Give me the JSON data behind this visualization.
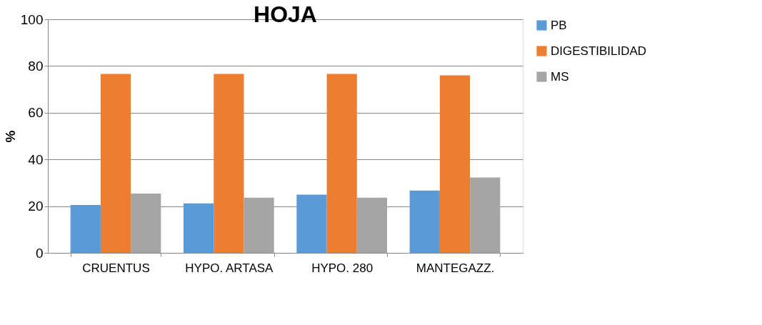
{
  "chart_data": {
    "type": "bar",
    "title": "HOJA",
    "ylabel": "%",
    "categories": [
      "CRUENTUS",
      "HYPO. ARTASA",
      "HYPO. 280",
      "MANTEGAZZ."
    ],
    "series": [
      {
        "name": "PB",
        "color": "#5b9bd5",
        "values": [
          20.5,
          21.2,
          24.9,
          26.7
        ]
      },
      {
        "name": "DIGESTIBILIDAD",
        "color": "#ed7d31",
        "values": [
          76.6,
          76.6,
          76.6,
          76.0
        ]
      },
      {
        "name": "MS",
        "color": "#a5a5a5",
        "values": [
          25.4,
          23.6,
          23.6,
          32.3
        ]
      }
    ],
    "ylim": [
      0,
      100
    ],
    "yticks": [
      0,
      20,
      40,
      60,
      80,
      100
    ],
    "grid": "y",
    "legend": "right"
  }
}
